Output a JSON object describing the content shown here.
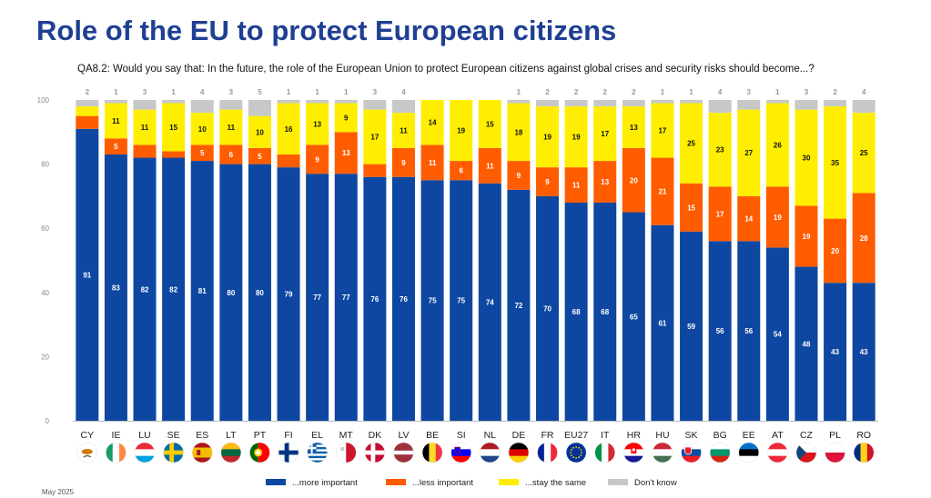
{
  "title": "Role of the EU to protect European citizens",
  "question": "QA8.2: Would you say that: In the future, the role of the European Union to protect European citizens against global crises and security risks should become...?",
  "footer_date": "May 2025",
  "colors": {
    "more": "#0d47a1",
    "less": "#ff5c00",
    "same": "#ffee00",
    "dk": "#c8c8c8"
  },
  "chart_data": {
    "type": "bar",
    "stacked": true,
    "ylim": [
      0,
      100
    ],
    "yticks": [
      0,
      20,
      40,
      60,
      80,
      100
    ],
    "grid": false,
    "legend_position": "bottom",
    "categories": [
      "CY",
      "IE",
      "LU",
      "SE",
      "ES",
      "LT",
      "PT",
      "FI",
      "EL",
      "MT",
      "DK",
      "LV",
      "BE",
      "SI",
      "NL",
      "DE",
      "FR",
      "EU27",
      "IT",
      "HR",
      "HU",
      "SK",
      "BG",
      "EE",
      "AT",
      "CZ",
      "PL",
      "RO"
    ],
    "flag_icons": [
      "cyprus-flag-icon",
      "ireland-flag-icon",
      "luxembourg-flag-icon",
      "sweden-flag-icon",
      "spain-flag-icon",
      "lithuania-flag-icon",
      "portugal-flag-icon",
      "finland-flag-icon",
      "greece-flag-icon",
      "malta-flag-icon",
      "denmark-flag-icon",
      "latvia-flag-icon",
      "belgium-flag-icon",
      "slovenia-flag-icon",
      "netherlands-flag-icon",
      "germany-flag-icon",
      "france-flag-icon",
      "eu-flag-icon",
      "italy-flag-icon",
      "croatia-flag-icon",
      "hungary-flag-icon",
      "slovakia-flag-icon",
      "bulgaria-flag-icon",
      "estonia-flag-icon",
      "austria-flag-icon",
      "czechia-flag-icon",
      "poland-flag-icon",
      "romania-flag-icon"
    ],
    "series": [
      {
        "name": "...more important",
        "key": "more",
        "values": [
          91,
          83,
          82,
          82,
          81,
          80,
          80,
          79,
          77,
          77,
          76,
          76,
          75,
          75,
          74,
          72,
          70,
          68,
          68,
          65,
          61,
          59,
          56,
          56,
          54,
          48,
          43,
          43
        ]
      },
      {
        "name": "...less important",
        "key": "less",
        "values": [
          4,
          5,
          4,
          2,
          5,
          6,
          5,
          4,
          9,
          13,
          4,
          9,
          11,
          6,
          11,
          9,
          9,
          11,
          13,
          20,
          21,
          15,
          17,
          14,
          19,
          19,
          20,
          28
        ]
      },
      {
        "name": "...stay the same",
        "key": "same",
        "values": [
          3,
          11,
          11,
          15,
          10,
          11,
          10,
          16,
          13,
          9,
          17,
          11,
          14,
          19,
          15,
          18,
          19,
          19,
          17,
          13,
          17,
          25,
          23,
          27,
          26,
          30,
          35,
          25
        ]
      },
      {
        "name": "Don't know",
        "key": "dk",
        "values": [
          2,
          1,
          3,
          1,
          4,
          3,
          5,
          1,
          1,
          1,
          3,
          4,
          0,
          0,
          0,
          1,
          2,
          2,
          2,
          2,
          1,
          1,
          4,
          3,
          1,
          3,
          2,
          4
        ]
      }
    ],
    "printed_labels": {
      "more": [
        91,
        83,
        82,
        82,
        81,
        80,
        80,
        79,
        77,
        77,
        76,
        76,
        75,
        75,
        74,
        72,
        70,
        68,
        68,
        65,
        61,
        59,
        56,
        56,
        54,
        48,
        43,
        43
      ],
      "less": [
        null,
        5,
        null,
        null,
        5,
        6,
        5,
        null,
        9,
        13,
        null,
        9,
        11,
        6,
        11,
        9,
        9,
        11,
        13,
        20,
        21,
        15,
        17,
        14,
        19,
        19,
        20,
        28
      ],
      "same": [
        null,
        11,
        11,
        15,
        10,
        11,
        10,
        16,
        13,
        9,
        17,
        11,
        14,
        19,
        15,
        18,
        19,
        19,
        17,
        13,
        17,
        25,
        23,
        27,
        26,
        30,
        35,
        25
      ],
      "dk": [
        "2",
        "1",
        "3",
        "1",
        "4",
        "3",
        "5",
        "1",
        "1",
        "1",
        "3",
        "4",
        "",
        "",
        "",
        "1",
        "2",
        "2",
        "2",
        "2",
        "1",
        "1",
        "4",
        "3",
        "1",
        "3",
        "2",
        "4"
      ]
    }
  }
}
